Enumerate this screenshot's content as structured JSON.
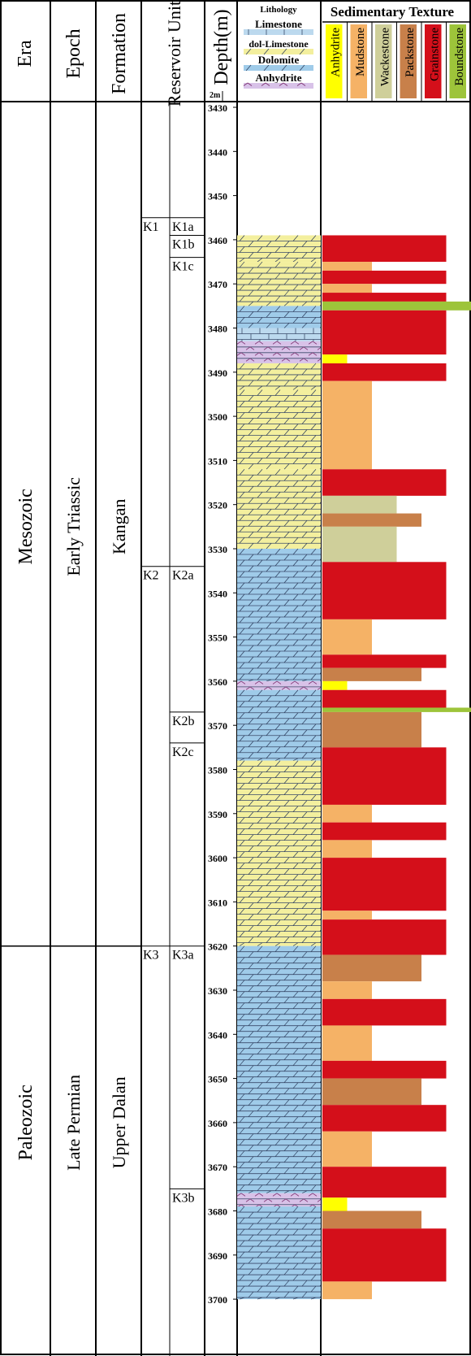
{
  "headers": {
    "era": "Era",
    "epoch": "Epoch",
    "formation": "Formation",
    "reservoir_unit": "Reservoir Unit",
    "depth": "Depth(m)",
    "scale": "2m",
    "lithology": "Lithology",
    "sedimentary_texture": "Sedimentary Texture"
  },
  "lithology_legend": [
    {
      "label": "Limestone",
      "pattern": "limestone"
    },
    {
      "label": "dol-Limestone",
      "pattern": "dollime"
    },
    {
      "label": "Dolomite",
      "pattern": "dolomite"
    },
    {
      "label": "Anhydrite",
      "pattern": "anhydrite"
    }
  ],
  "texture_legend": [
    {
      "label": "Anhydrite",
      "color": "#ffff00"
    },
    {
      "label": "Mudstone",
      "color": "#f5b266"
    },
    {
      "label": "Wackestone",
      "color": "#cfcf9a"
    },
    {
      "label": "Packstone",
      "color": "#c8804a"
    },
    {
      "label": "Grainstone",
      "color": "#d40f1a"
    },
    {
      "label": "Boundstone",
      "color": "#9dc43a"
    }
  ],
  "depth_range": [
    3430,
    3700
  ],
  "depth_ticks": [
    3430,
    3440,
    3450,
    3460,
    3470,
    3480,
    3490,
    3500,
    3510,
    3520,
    3530,
    3540,
    3550,
    3560,
    3570,
    3580,
    3590,
    3600,
    3610,
    3620,
    3630,
    3640,
    3650,
    3660,
    3670,
    3680,
    3690,
    3700
  ],
  "eras": [
    {
      "name": "Mesozoic",
      "top": 3430,
      "base": 3620
    },
    {
      "name": "Paleozoic",
      "top": 3620,
      "base": 3700
    }
  ],
  "epochs": [
    {
      "name": "Early Triassic",
      "top": 3430,
      "base": 3620
    },
    {
      "name": "Late Permian",
      "top": 3620,
      "base": 3700
    }
  ],
  "formations": [
    {
      "name": "Kangan",
      "top": 3430,
      "base": 3620
    },
    {
      "name": "Upper Dalan",
      "top": 3620,
      "base": 3700
    }
  ],
  "units": [
    {
      "name": "K1",
      "top": 3455,
      "base": 3534
    },
    {
      "name": "K2",
      "top": 3534,
      "base": 3620
    },
    {
      "name": "K3",
      "top": 3620,
      "base": 3700
    }
  ],
  "subunits": [
    {
      "name": "K1a",
      "top": 3455,
      "base": 3459
    },
    {
      "name": "K1b",
      "top": 3459,
      "base": 3464
    },
    {
      "name": "K1c",
      "top": 3464,
      "base": 3534
    },
    {
      "name": "K2a",
      "top": 3534,
      "base": 3567
    },
    {
      "name": "K2b",
      "top": 3567,
      "base": 3574
    },
    {
      "name": "K2c",
      "top": 3574,
      "base": 3620
    },
    {
      "name": "K3a",
      "top": 3620,
      "base": 3675
    },
    {
      "name": "K3b",
      "top": 3675,
      "base": 3700
    }
  ],
  "lithology_intervals": [
    {
      "top": 3459,
      "base": 3465,
      "type": "dollime"
    },
    {
      "top": 3465,
      "base": 3475,
      "type": "dollime"
    },
    {
      "top": 3475,
      "base": 3480,
      "type": "dolomite"
    },
    {
      "top": 3480,
      "base": 3483,
      "type": "limestone"
    },
    {
      "top": 3483,
      "base": 3488,
      "type": "anhydrite"
    },
    {
      "top": 3488,
      "base": 3494,
      "type": "dollime"
    },
    {
      "top": 3494,
      "base": 3512,
      "type": "dollime"
    },
    {
      "top": 3512,
      "base": 3530,
      "type": "dollime"
    },
    {
      "top": 3530,
      "base": 3560,
      "type": "dolomite"
    },
    {
      "top": 3560,
      "base": 3562,
      "type": "anhydrite"
    },
    {
      "top": 3562,
      "base": 3578,
      "type": "dolomite"
    },
    {
      "top": 3578,
      "base": 3620,
      "type": "dollime"
    },
    {
      "top": 3620,
      "base": 3676,
      "type": "dolomite"
    },
    {
      "top": 3676,
      "base": 3679,
      "type": "anhydrite"
    },
    {
      "top": 3679,
      "base": 3700,
      "type": "dolomite"
    }
  ],
  "texture_intervals": [
    {
      "top": 3459,
      "base": 3465,
      "texture": "Grainstone"
    },
    {
      "top": 3465,
      "base": 3467,
      "texture": "Mudstone"
    },
    {
      "top": 3467,
      "base": 3470,
      "texture": "Grainstone"
    },
    {
      "top": 3470,
      "base": 3472,
      "texture": "Mudstone"
    },
    {
      "top": 3472,
      "base": 3474,
      "texture": "Grainstone"
    },
    {
      "top": 3474,
      "base": 3476,
      "texture": "Boundstone"
    },
    {
      "top": 3476,
      "base": 3486,
      "texture": "Grainstone"
    },
    {
      "top": 3486,
      "base": 3488,
      "texture": "Anhydrite"
    },
    {
      "top": 3488,
      "base": 3492,
      "texture": "Grainstone"
    },
    {
      "top": 3492,
      "base": 3512,
      "texture": "Mudstone"
    },
    {
      "top": 3512,
      "base": 3518,
      "texture": "Grainstone"
    },
    {
      "top": 3518,
      "base": 3522,
      "texture": "Wackestone"
    },
    {
      "top": 3522,
      "base": 3525,
      "texture": "Packstone"
    },
    {
      "top": 3525,
      "base": 3533,
      "texture": "Wackestone"
    },
    {
      "top": 3533,
      "base": 3546,
      "texture": "Grainstone"
    },
    {
      "top": 3546,
      "base": 3554,
      "texture": "Mudstone"
    },
    {
      "top": 3554,
      "base": 3557,
      "texture": "Grainstone"
    },
    {
      "top": 3557,
      "base": 3560,
      "texture": "Packstone"
    },
    {
      "top": 3560,
      "base": 3562,
      "texture": "Anhydrite"
    },
    {
      "top": 3562,
      "base": 3566,
      "texture": "Grainstone"
    },
    {
      "top": 3566,
      "base": 3567,
      "texture": "Boundstone"
    },
    {
      "top": 3567,
      "base": 3575,
      "texture": "Packstone"
    },
    {
      "top": 3575,
      "base": 3588,
      "texture": "Grainstone"
    },
    {
      "top": 3588,
      "base": 3592,
      "texture": "Mudstone"
    },
    {
      "top": 3592,
      "base": 3596,
      "texture": "Grainstone"
    },
    {
      "top": 3596,
      "base": 3600,
      "texture": "Mudstone"
    },
    {
      "top": 3600,
      "base": 3612,
      "texture": "Grainstone"
    },
    {
      "top": 3612,
      "base": 3614,
      "texture": "Mudstone"
    },
    {
      "top": 3614,
      "base": 3622,
      "texture": "Grainstone"
    },
    {
      "top": 3622,
      "base": 3628,
      "texture": "Packstone"
    },
    {
      "top": 3628,
      "base": 3632,
      "texture": "Mudstone"
    },
    {
      "top": 3632,
      "base": 3638,
      "texture": "Grainstone"
    },
    {
      "top": 3638,
      "base": 3646,
      "texture": "Mudstone"
    },
    {
      "top": 3646,
      "base": 3650,
      "texture": "Grainstone"
    },
    {
      "top": 3650,
      "base": 3656,
      "texture": "Packstone"
    },
    {
      "top": 3656,
      "base": 3662,
      "texture": "Grainstone"
    },
    {
      "top": 3662,
      "base": 3670,
      "texture": "Mudstone"
    },
    {
      "top": 3670,
      "base": 3677,
      "texture": "Grainstone"
    },
    {
      "top": 3677,
      "base": 3680,
      "texture": "Anhydrite"
    },
    {
      "top": 3680,
      "base": 3684,
      "texture": "Packstone"
    },
    {
      "top": 3684,
      "base": 3696,
      "texture": "Grainstone"
    },
    {
      "top": 3696,
      "base": 3700,
      "texture": "Mudstone"
    }
  ]
}
